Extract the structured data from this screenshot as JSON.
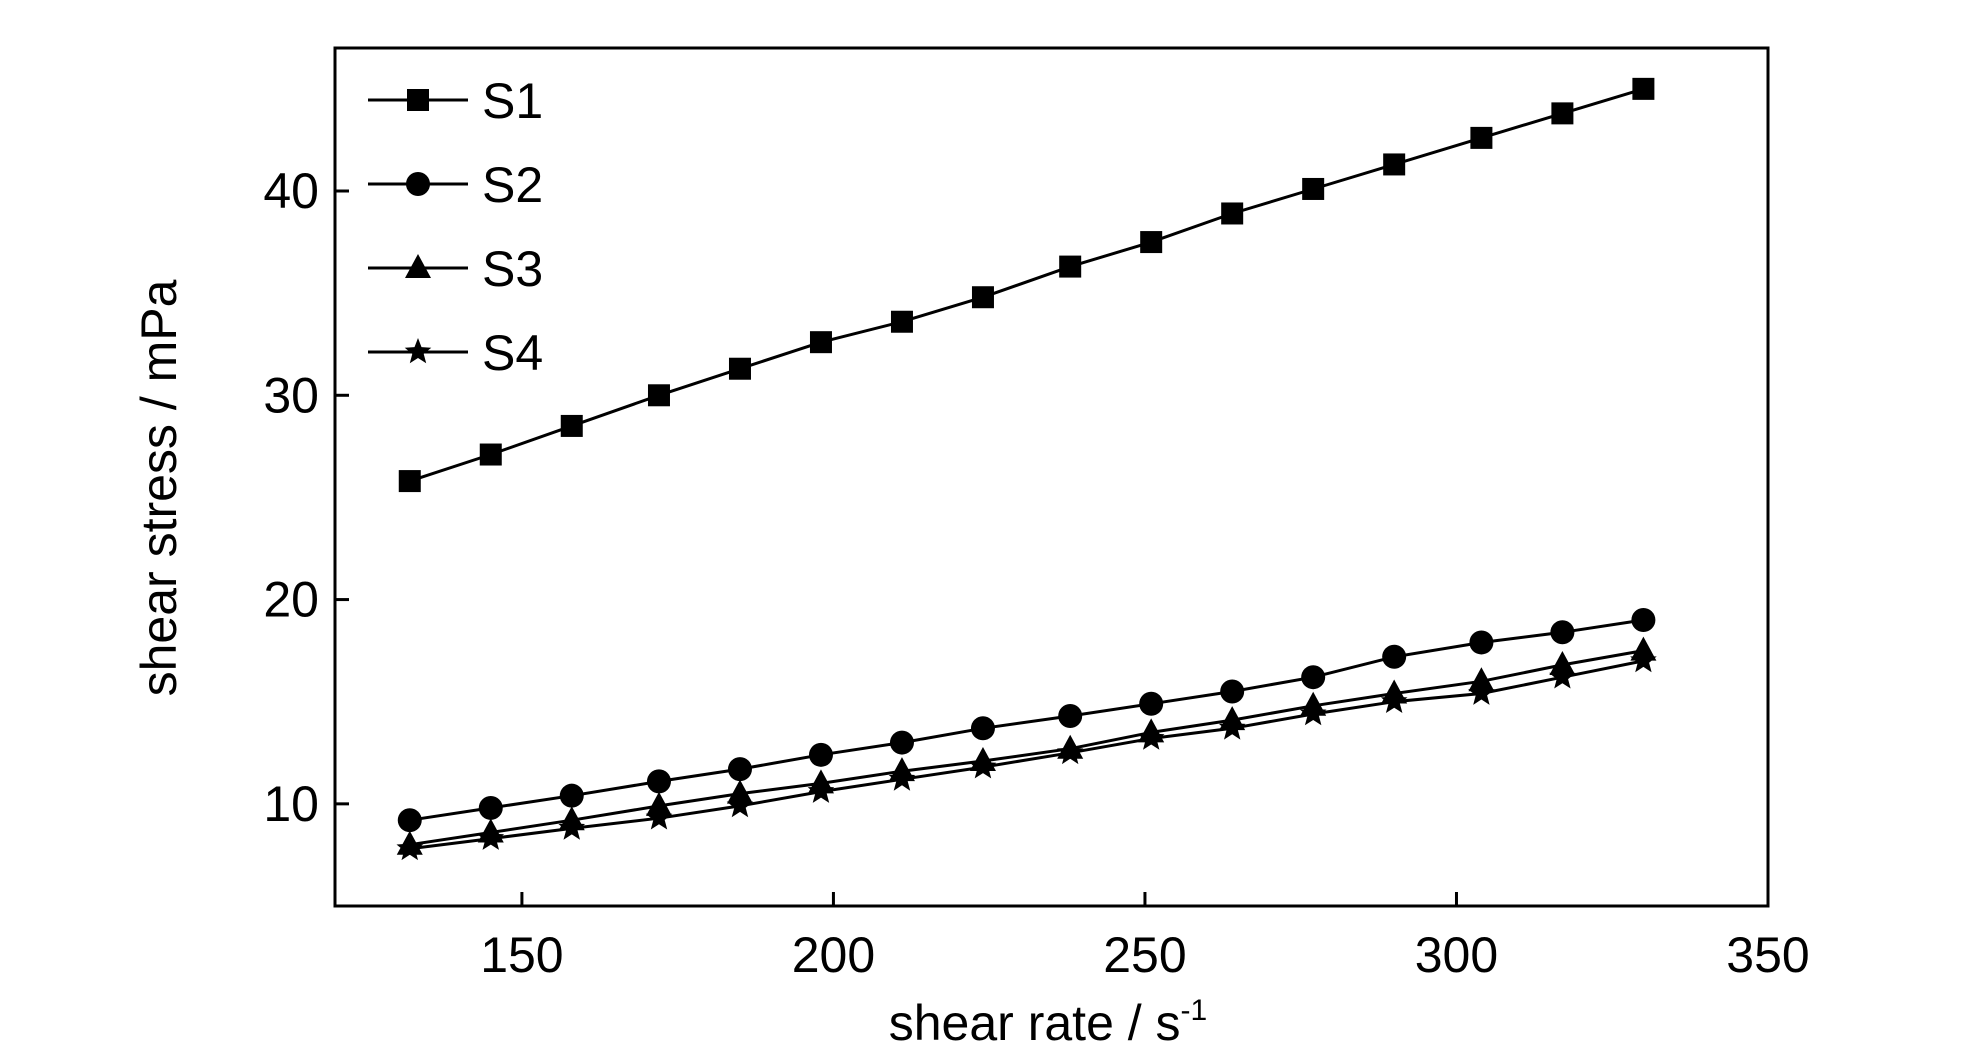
{
  "chart_data": {
    "type": "line",
    "title": "",
    "xlabel": "shear rate / s",
    "xlabel_superscript": "-1",
    "ylabel": "shear stress / mPa",
    "xlim": [
      120,
      350
    ],
    "ylim": [
      5,
      47
    ],
    "x_ticks": [
      150,
      200,
      250,
      300,
      350
    ],
    "y_ticks": [
      10,
      20,
      30,
      40
    ],
    "grid": false,
    "legend_position": "top-left",
    "x": [
      132,
      145,
      158,
      172,
      185,
      198,
      211,
      224,
      238,
      251,
      264,
      277,
      290,
      304,
      317,
      330
    ],
    "series": [
      {
        "name": "S1",
        "marker": "square",
        "values": [
          25.8,
          27.1,
          28.5,
          30.0,
          31.3,
          32.6,
          33.6,
          34.8,
          36.3,
          37.5,
          38.9,
          40.1,
          41.3,
          42.6,
          43.8,
          45.0
        ]
      },
      {
        "name": "S2",
        "marker": "circle",
        "values": [
          9.2,
          9.8,
          10.4,
          11.1,
          11.7,
          12.4,
          13.0,
          13.7,
          14.3,
          14.9,
          15.5,
          16.2,
          17.2,
          17.9,
          18.4,
          19.0
        ]
      },
      {
        "name": "S3",
        "marker": "triangle",
        "values": [
          8.0,
          8.6,
          9.2,
          9.9,
          10.5,
          11.0,
          11.6,
          12.1,
          12.7,
          13.5,
          14.1,
          14.8,
          15.4,
          16.0,
          16.8,
          17.5
        ]
      },
      {
        "name": "S4",
        "marker": "star",
        "values": [
          7.8,
          8.3,
          8.8,
          9.3,
          9.9,
          10.6,
          11.2,
          11.8,
          12.5,
          13.2,
          13.7,
          14.4,
          15.0,
          15.4,
          16.2,
          17.0
        ]
      }
    ]
  },
  "colors": {
    "ink": "#000000",
    "background": "#ffffff"
  }
}
